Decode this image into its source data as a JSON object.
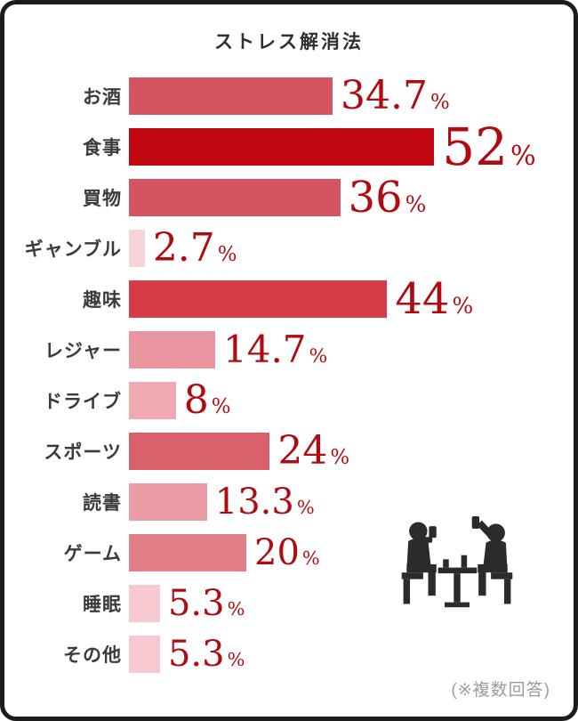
{
  "page": {
    "title": "ストレス解消法",
    "footnote": "(※複数回答)"
  },
  "chart_data": {
    "type": "bar",
    "orientation": "horizontal",
    "title": "ストレス解消法",
    "note": "(※複数回答)",
    "unit": "%",
    "xlim": [
      0,
      55
    ],
    "legend": false,
    "grid": false,
    "value_color": "#b00b10",
    "categories": [
      "お酒",
      "食事",
      "買物",
      "ギャンブル",
      "趣味",
      "レジャー",
      "ドライブ",
      "スポーツ",
      "読書",
      "ゲーム",
      "睡眠",
      "その他"
    ],
    "values": [
      34.7,
      52,
      36,
      2.7,
      44,
      14.7,
      8,
      24,
      13.3,
      20,
      5.3,
      5.3
    ],
    "bars": [
      {
        "label": "お酒",
        "value": 34.7,
        "display": "34.7",
        "color": "#d6545f",
        "size": 44
      },
      {
        "label": "食事",
        "value": 52,
        "display": "52",
        "color": "#c00712",
        "size": 58
      },
      {
        "label": "買物",
        "value": 36,
        "display": "36",
        "color": "#d6545f",
        "size": 48
      },
      {
        "label": "ギャンブル",
        "value": 2.7,
        "display": "2.7",
        "color": "#f6d3d8",
        "size": 44
      },
      {
        "label": "趣味",
        "value": 44,
        "display": "44",
        "color": "#d63b47",
        "size": 48
      },
      {
        "label": "レジャー",
        "value": 14.7,
        "display": "14.7",
        "color": "#ea96a0",
        "size": 42
      },
      {
        "label": "ドライブ",
        "value": 8,
        "display": "8",
        "color": "#f0a8b2",
        "size": 44
      },
      {
        "label": "スポーツ",
        "value": 24,
        "display": "24",
        "color": "#da616c",
        "size": 44
      },
      {
        "label": "読書",
        "value": 13.3,
        "display": "13.3",
        "color": "#ec9ca6",
        "size": 40
      },
      {
        "label": "ゲーム",
        "value": 20,
        "display": "20",
        "color": "#e27e88",
        "size": 40
      },
      {
        "label": "睡眠",
        "value": 5.3,
        "display": "5.3",
        "color": "#f5c9cf",
        "size": 40
      },
      {
        "label": "その他",
        "value": 5.3,
        "display": "5.3",
        "color": "#f5c9cf",
        "size": 40
      }
    ],
    "icon": {
      "name": "two-people-dining-icon",
      "color": "#2b2b2b"
    }
  }
}
